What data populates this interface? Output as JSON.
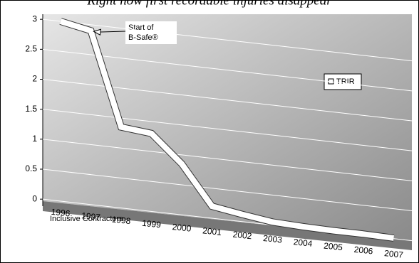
{
  "chart_data": {
    "type": "line",
    "title": "Right now first recordable injuries disappear",
    "x_label": "Inclusive Contractors",
    "annotation": "Start of B-Safe®",
    "categories": [
      "1996",
      "1997",
      "1998",
      "1999",
      "2000",
      "2001",
      "2002",
      "2003",
      "2004",
      "2005",
      "2006",
      "2007"
    ],
    "series": [
      {
        "name": "TRIR",
        "color": "#ffffff",
        "values": [
          3.0,
          2.9,
          1.35,
          1.3,
          0.85,
          0.2,
          0.12,
          0.05,
          0.03,
          0.02,
          0.02,
          0.01
        ]
      }
    ],
    "ylim": [
      0,
      3
    ],
    "yticks": [
      0,
      {
        "value": 0.5,
        "label": "0.5"
      },
      1,
      {
        "value": 1.5,
        "label": "1.5"
      },
      2,
      {
        "value": 2.5,
        "label": "2.5"
      },
      3
    ],
    "grid": true,
    "legend": "right"
  }
}
